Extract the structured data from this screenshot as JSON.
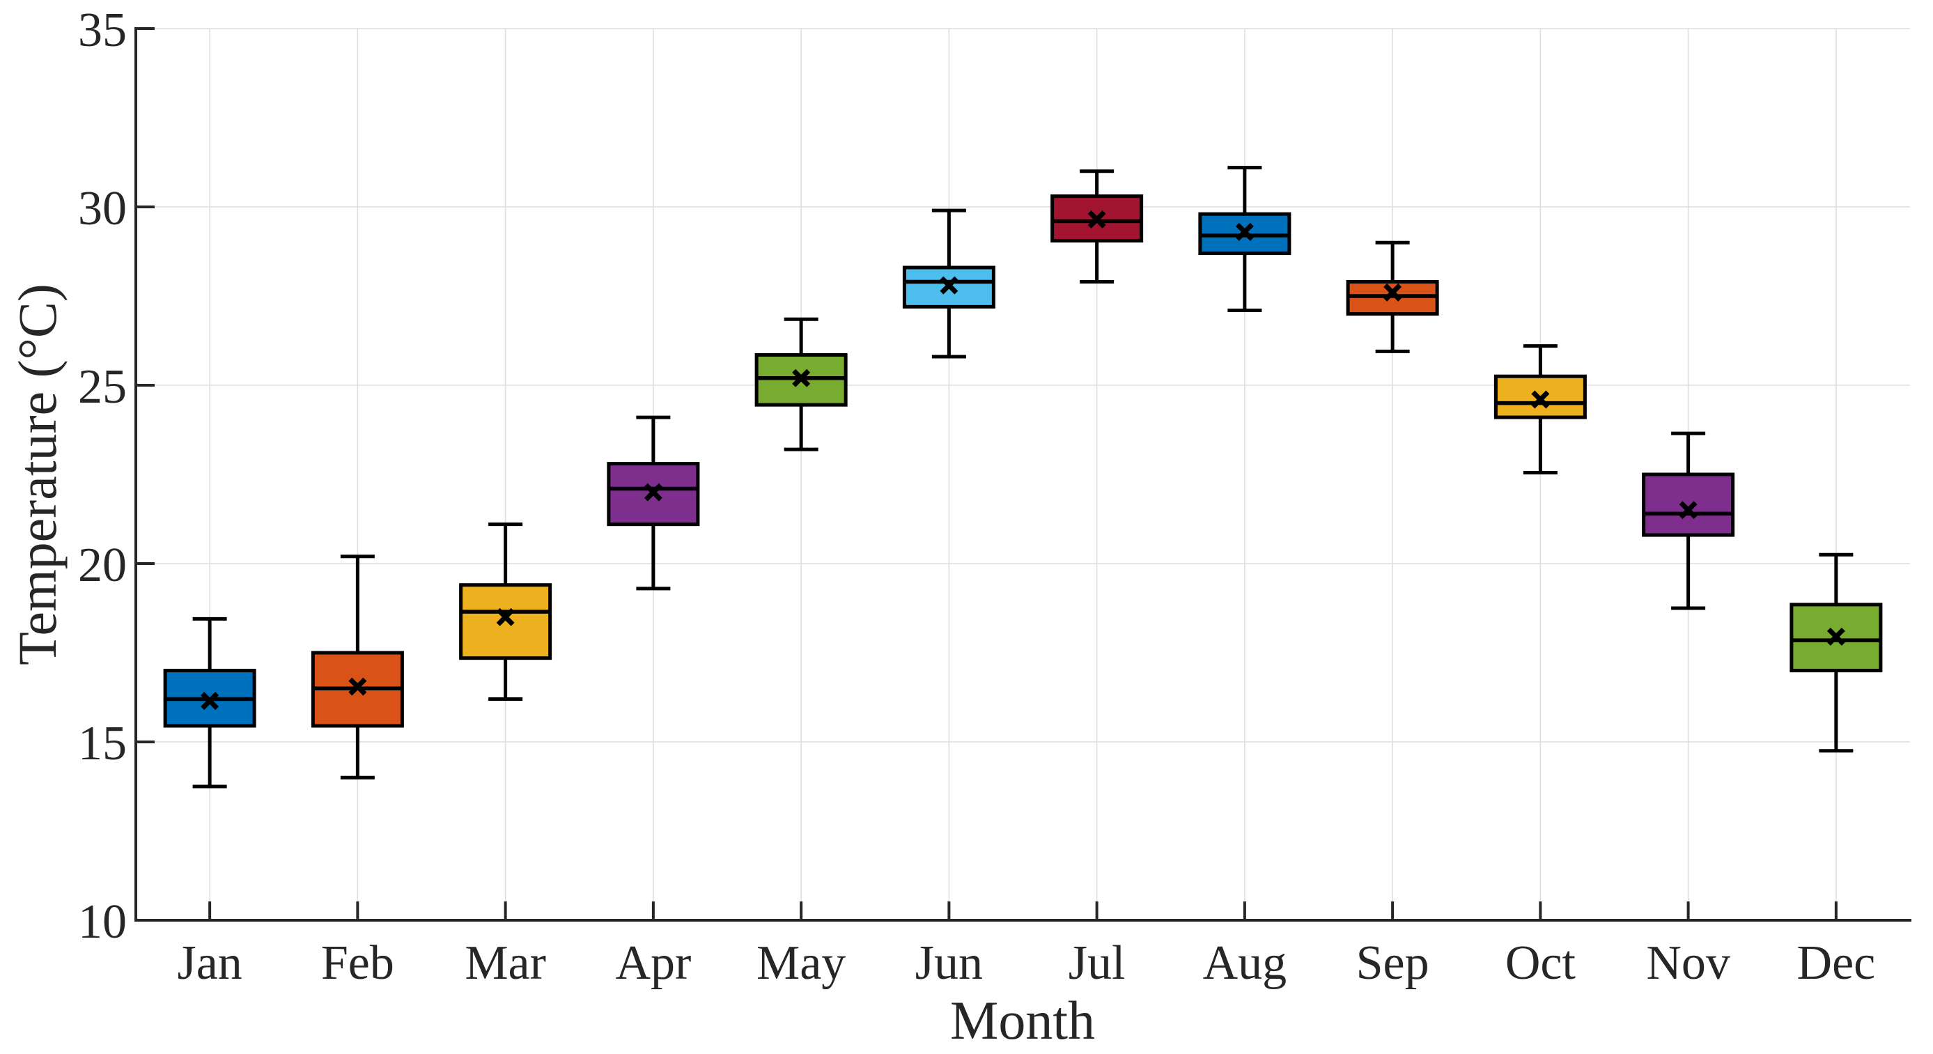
{
  "chart_data": {
    "type": "box",
    "title": "",
    "xlabel": "Month",
    "ylabel": "Temperature (°C)",
    "ylim": [
      10,
      35
    ],
    "yticks": [
      10,
      15,
      20,
      25,
      30,
      35
    ],
    "categories": [
      "Jan",
      "Feb",
      "Mar",
      "Apr",
      "May",
      "Jun",
      "Jul",
      "Aug",
      "Sep",
      "Oct",
      "Nov",
      "Dec"
    ],
    "grid": true,
    "legend": false,
    "mean_marker": "x",
    "colors": {
      "axis": "#262626",
      "grid": "#dedede",
      "box_edge": "#000000",
      "median": "#000000",
      "whisker": "#000000",
      "mean_marker": "#000000",
      "background": "#ffffff"
    },
    "series": [
      {
        "name": "Jan",
        "whisker_low": 13.75,
        "q1": 15.45,
        "median": 16.2,
        "mean": 16.15,
        "q3": 17.0,
        "whisker_high": 18.45,
        "color": "#0072BD"
      },
      {
        "name": "Feb",
        "whisker_low": 14.0,
        "q1": 15.45,
        "median": 16.5,
        "mean": 16.55,
        "q3": 17.5,
        "whisker_high": 20.2,
        "color": "#D95319"
      },
      {
        "name": "Mar",
        "whisker_low": 16.2,
        "q1": 17.35,
        "median": 18.65,
        "mean": 18.5,
        "q3": 19.4,
        "whisker_high": 21.1,
        "color": "#EDB120"
      },
      {
        "name": "Apr",
        "whisker_low": 19.3,
        "q1": 21.1,
        "median": 22.1,
        "mean": 22.0,
        "q3": 22.8,
        "whisker_high": 24.1,
        "color": "#7E2F8E"
      },
      {
        "name": "May",
        "whisker_low": 23.2,
        "q1": 24.45,
        "median": 25.2,
        "mean": 25.2,
        "q3": 25.85,
        "whisker_high": 26.85,
        "color": "#77AC30"
      },
      {
        "name": "Jun",
        "whisker_low": 25.8,
        "q1": 27.2,
        "median": 27.9,
        "mean": 27.8,
        "q3": 28.3,
        "whisker_high": 29.9,
        "color": "#4DBEEE"
      },
      {
        "name": "Jul",
        "whisker_low": 27.9,
        "q1": 29.05,
        "median": 29.6,
        "mean": 29.65,
        "q3": 30.3,
        "whisker_high": 31.0,
        "color": "#A2142F"
      },
      {
        "name": "Aug",
        "whisker_low": 27.1,
        "q1": 28.7,
        "median": 29.2,
        "mean": 29.3,
        "q3": 29.8,
        "whisker_high": 31.1,
        "color": "#0072BD"
      },
      {
        "name": "Sep",
        "whisker_low": 25.95,
        "q1": 27.0,
        "median": 27.5,
        "mean": 27.6,
        "q3": 27.9,
        "whisker_high": 29.0,
        "color": "#D95319"
      },
      {
        "name": "Oct",
        "whisker_low": 22.55,
        "q1": 24.1,
        "median": 24.5,
        "mean": 24.6,
        "q3": 25.25,
        "whisker_high": 26.1,
        "color": "#EDB120"
      },
      {
        "name": "Nov",
        "whisker_low": 18.75,
        "q1": 20.8,
        "median": 21.4,
        "mean": 21.5,
        "q3": 22.5,
        "whisker_high": 23.65,
        "color": "#7E2F8E"
      },
      {
        "name": "Dec",
        "whisker_low": 14.75,
        "q1": 17.0,
        "median": 17.85,
        "mean": 17.95,
        "q3": 18.85,
        "whisker_high": 20.25,
        "color": "#77AC30"
      }
    ]
  }
}
